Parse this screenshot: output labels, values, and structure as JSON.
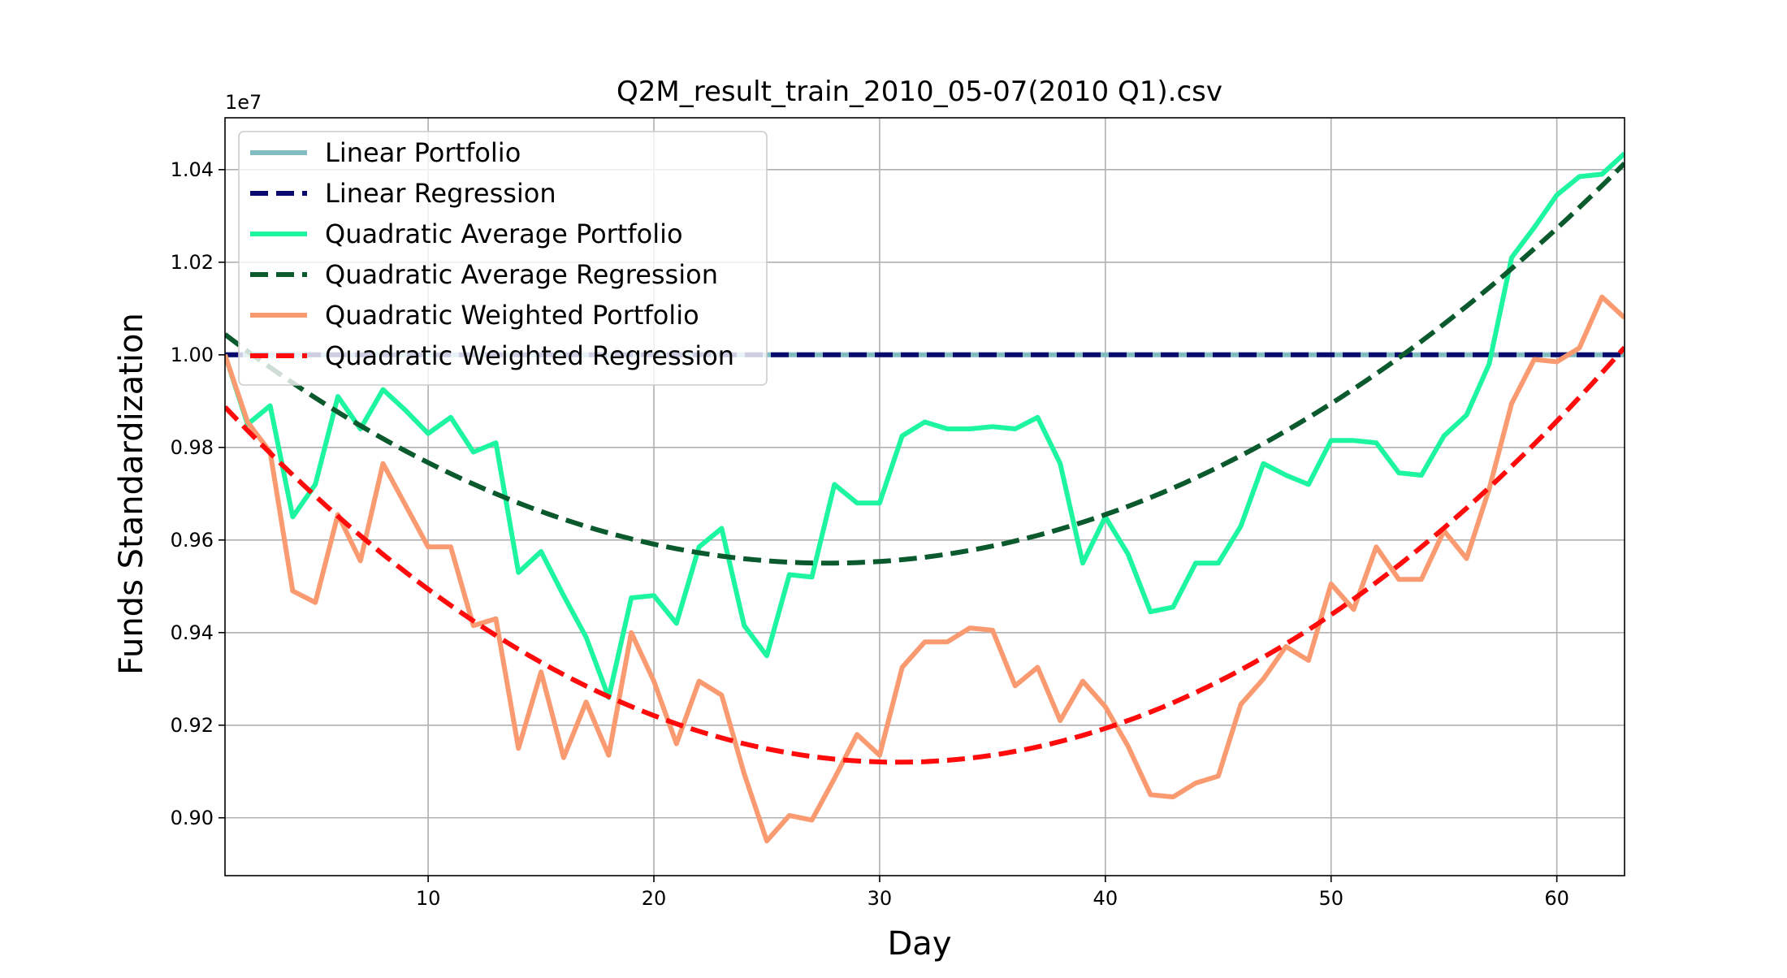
{
  "chart_data": {
    "type": "line",
    "title": "Q2M_result_train_2010_05-07(2010 Q1).csv",
    "xlabel": "Day",
    "ylabel": "Funds Standardization",
    "y_offset_label": "1e7",
    "xlim": [
      1,
      63
    ],
    "ylim": [
      0.8875,
      1.0512
    ],
    "grid": true,
    "legend_position": "upper-left",
    "x_ticks": [
      10,
      20,
      30,
      40,
      50,
      60
    ],
    "y_ticks": [
      0.9,
      0.92,
      0.94,
      0.96,
      0.98,
      1.0,
      1.02,
      1.04
    ],
    "x_tick_labels": [
      "10",
      "20",
      "30",
      "40",
      "50",
      "60"
    ],
    "y_tick_labels": [
      "0.90",
      "0.92",
      "0.94",
      "0.96",
      "0.98",
      "1.00",
      "1.02",
      "1.04"
    ],
    "series": [
      {
        "name": "Linear Portfolio",
        "color": "#80bcc0",
        "dash": "solid",
        "kind": "constant",
        "value": 1.0
      },
      {
        "name": "Linear Regression",
        "color": "#0a0a6e",
        "dash": "dashed",
        "kind": "constant",
        "value": 1.0
      },
      {
        "name": "Quadratic Average Portfolio",
        "color": "#1ef5a0",
        "dash": "solid",
        "kind": "points",
        "values": [
          1.0,
          0.985,
          0.989,
          0.965,
          0.972,
          0.991,
          0.984,
          0.9925,
          0.988,
          0.983,
          0.9865,
          0.979,
          0.981,
          0.953,
          0.9575,
          0.948,
          0.939,
          0.926,
          0.9475,
          0.948,
          0.942,
          0.9585,
          0.9625,
          0.9415,
          0.935,
          0.9525,
          0.952,
          0.972,
          0.968,
          0.968,
          0.9825,
          0.9855,
          0.984,
          0.984,
          0.9845,
          0.984,
          0.9865,
          0.9765,
          0.955,
          0.965,
          0.957,
          0.9445,
          0.9455,
          0.955,
          0.955,
          0.963,
          0.9765,
          0.974,
          0.972,
          0.9815,
          0.9815,
          0.981,
          0.9745,
          0.974,
          0.9825,
          0.987,
          0.998,
          1.021,
          1.0275,
          1.0345,
          1.0385,
          1.039,
          1.0435
        ]
      },
      {
        "name": "Quadratic Average Regression",
        "color": "#0b5a2e",
        "dash": "dashed",
        "kind": "quadratic",
        "vertex_x": 27.7,
        "vertex_y": 0.955,
        "a": 6.93e-05
      },
      {
        "name": "Quadratic Weighted Portfolio",
        "color": "#fa9a70",
        "dash": "solid",
        "kind": "points",
        "values": [
          1.0,
          0.9855,
          0.979,
          0.949,
          0.9465,
          0.9655,
          0.9555,
          0.9765,
          0.9675,
          0.9585,
          0.9585,
          0.9415,
          0.943,
          0.915,
          0.9315,
          0.913,
          0.925,
          0.9135,
          0.94,
          0.9295,
          0.916,
          0.9295,
          0.9265,
          0.9095,
          0.895,
          0.9005,
          0.8995,
          0.9085,
          0.918,
          0.9135,
          0.9325,
          0.938,
          0.938,
          0.941,
          0.9405,
          0.9285,
          0.9325,
          0.921,
          0.9295,
          0.924,
          0.9155,
          0.905,
          0.9045,
          0.9075,
          0.909,
          0.9245,
          0.93,
          0.937,
          0.934,
          0.9505,
          0.945,
          0.9585,
          0.9515,
          0.9515,
          0.962,
          0.956,
          0.971,
          0.9895,
          0.999,
          0.9985,
          1.0015,
          1.0125,
          1.008
        ]
      },
      {
        "name": "Quadratic Weighted Regression",
        "color": "#ff0b0b",
        "dash": "dashed",
        "kind": "quadratic",
        "vertex_x": 30.8,
        "vertex_y": 0.912,
        "a": 8.64e-05
      }
    ]
  }
}
